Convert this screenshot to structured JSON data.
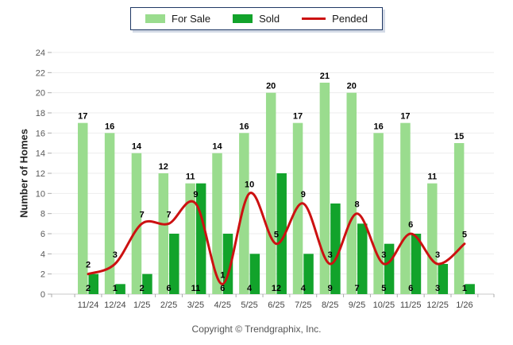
{
  "legend": {
    "for_sale_label": "For Sale",
    "sold_label": "Sold",
    "pended_label": "Pended"
  },
  "footer": "Copyright © Trendgraphix, Inc.",
  "colors": {
    "for_sale": "#9ADC8E",
    "sold": "#12A32B",
    "pended": "#CC1111",
    "grid": "#EDEDED",
    "axis_line": "#C8C8C8",
    "tick_mark": "#ABABAB",
    "tick_text": "#595959",
    "value_label": "#000000",
    "legend_border": "#1F3864"
  },
  "chart_data": {
    "type": "bar",
    "title": "",
    "categories": [
      "11/24",
      "12/24",
      "1/25",
      "2/25",
      "3/25",
      "4/25",
      "5/25",
      "6/25",
      "7/25",
      "8/25",
      "9/25",
      "10/25",
      "11/25",
      "12/25",
      "1/26"
    ],
    "series": [
      {
        "name": "For Sale",
        "type": "bar",
        "color": "#9ADC8E",
        "values": [
          17,
          16,
          14,
          12,
          11,
          14,
          16,
          20,
          17,
          21,
          20,
          16,
          17,
          11,
          15
        ]
      },
      {
        "name": "Sold",
        "type": "bar",
        "color": "#12A32B",
        "values": [
          2,
          1,
          2,
          6,
          11,
          6,
          4,
          12,
          4,
          9,
          7,
          5,
          6,
          3,
          1
        ]
      },
      {
        "name": "Pended",
        "type": "line",
        "color": "#CC1111",
        "values": [
          2,
          3,
          7,
          7,
          9,
          1,
          10,
          5,
          9,
          3,
          8,
          3,
          6,
          3,
          5
        ]
      }
    ],
    "xlabel": "",
    "ylabel": "Number of Homes",
    "ylim": [
      0,
      24
    ],
    "y_tick_step": 2,
    "grid": true,
    "legend_position": "top"
  }
}
